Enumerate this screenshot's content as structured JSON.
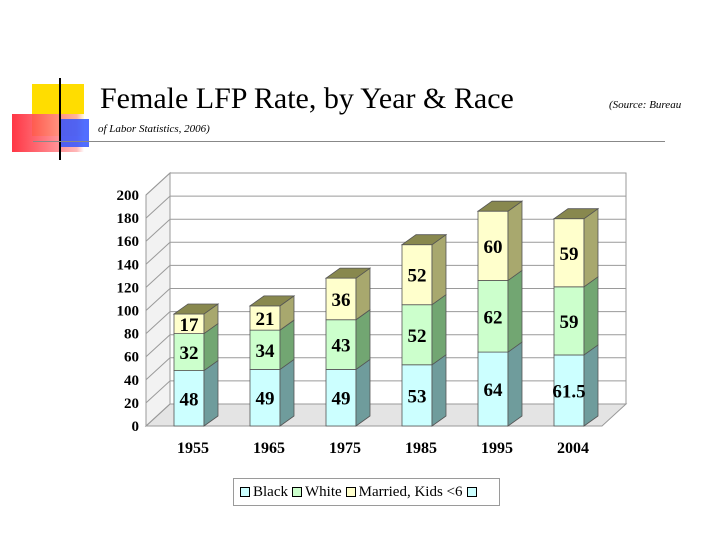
{
  "slide": {
    "title": "Female LFP Rate, by Year & Race",
    "source_part1": "(Source: Bureau",
    "source_part2": "of Labor Statistics, 2006)"
  },
  "colors": {
    "black_series": "#ccffff",
    "white_series": "#ccffcc",
    "married_series": "#ffffcc",
    "fourth_series": "#ccffff",
    "deco_yellow": "#ffdd00",
    "deco_red": "#ff3344",
    "deco_blue": "#3355ff"
  },
  "chart_data": {
    "type": "bar",
    "stacked": true,
    "categories": [
      "1955",
      "1965",
      "1975",
      "1985",
      "1995",
      "2004"
    ],
    "series": [
      {
        "name": "Black",
        "values": [
          48,
          49,
          49,
          53,
          64,
          61.5
        ],
        "labels": [
          "48",
          "49",
          "49",
          "53",
          "64",
          "61.5"
        ]
      },
      {
        "name": "White",
        "values": [
          32,
          34,
          43,
          52,
          62,
          59
        ],
        "labels": [
          "32",
          "34",
          "43",
          "52",
          "62",
          "59"
        ]
      },
      {
        "name": "Married, Kids <6",
        "values": [
          17,
          21,
          36,
          52,
          60,
          59
        ],
        "labels": [
          "17",
          "21",
          "36",
          "52",
          "60",
          "59"
        ]
      },
      {
        "name": "",
        "values": [
          0,
          0,
          0,
          0,
          0,
          0
        ],
        "labels": []
      }
    ],
    "ylim": [
      0,
      200
    ],
    "yticks": [
      "0",
      "20",
      "40",
      "60",
      "80",
      "100",
      "120",
      "140",
      "160",
      "180",
      "200"
    ],
    "grid": true,
    "legend_position": "bottom",
    "three_d": true
  }
}
